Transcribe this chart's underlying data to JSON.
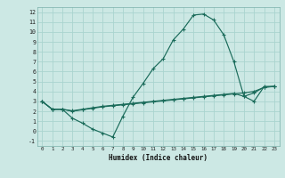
{
  "title": "",
  "xlabel": "Humidex (Indice chaleur)",
  "bg_color": "#cce8e4",
  "grid_color": "#aad4cf",
  "line_color": "#1a6b5a",
  "xlim": [
    -0.5,
    23.5
  ],
  "ylim": [
    -1.5,
    12.5
  ],
  "xticks": [
    0,
    1,
    2,
    3,
    4,
    5,
    6,
    7,
    8,
    9,
    10,
    11,
    12,
    13,
    14,
    15,
    16,
    17,
    18,
    19,
    20,
    21,
    22,
    23
  ],
  "yticks": [
    -1,
    0,
    1,
    2,
    3,
    4,
    5,
    6,
    7,
    8,
    9,
    10,
    11,
    12
  ],
  "line1_x": [
    0,
    1,
    2,
    3,
    4,
    5,
    6,
    7,
    8,
    9,
    10,
    11,
    12,
    13,
    14,
    15,
    16,
    17,
    18,
    19,
    20,
    21,
    22,
    23
  ],
  "line1_y": [
    3.0,
    2.2,
    2.2,
    1.3,
    0.8,
    0.2,
    -0.2,
    -0.6,
    1.5,
    3.4,
    4.8,
    6.3,
    7.3,
    9.2,
    10.3,
    11.7,
    11.8,
    11.2,
    9.7,
    7.0,
    3.5,
    3.0,
    4.5,
    4.5
  ],
  "line2_x": [
    0,
    1,
    2,
    3,
    4,
    5,
    6,
    7,
    8,
    9,
    10,
    11,
    12,
    13,
    14,
    15,
    16,
    17,
    18,
    19,
    20,
    21,
    22,
    23
  ],
  "line2_y": [
    3.0,
    2.2,
    2.2,
    2.0,
    2.15,
    2.3,
    2.45,
    2.55,
    2.65,
    2.75,
    2.85,
    2.95,
    3.05,
    3.15,
    3.25,
    3.35,
    3.45,
    3.55,
    3.65,
    3.75,
    3.85,
    4.0,
    4.4,
    4.5
  ],
  "line3_x": [
    0,
    1,
    2,
    3,
    4,
    5,
    6,
    7,
    8,
    9,
    10,
    11,
    12,
    13,
    14,
    15,
    16,
    17,
    18,
    19,
    20,
    21,
    22,
    23
  ],
  "line3_y": [
    3.0,
    2.2,
    2.2,
    2.05,
    2.2,
    2.35,
    2.5,
    2.6,
    2.7,
    2.8,
    2.9,
    3.0,
    3.1,
    3.2,
    3.3,
    3.4,
    3.5,
    3.6,
    3.7,
    3.8,
    3.5,
    3.85,
    4.45,
    4.5
  ]
}
